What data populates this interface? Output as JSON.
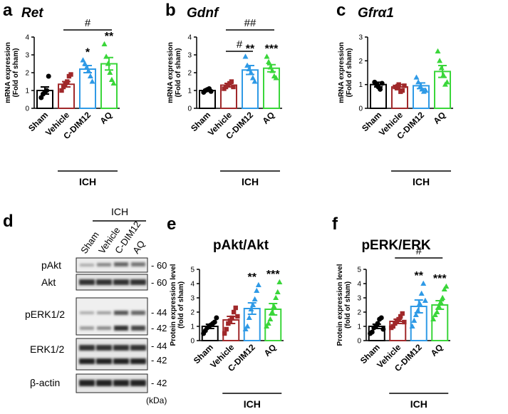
{
  "chart_data": [
    {
      "type": "bar",
      "panel": "a",
      "title": "Ret",
      "italic": true,
      "ylabel": [
        "mRNA expression",
        "(Fold of sham)"
      ],
      "categories": [
        "Sham",
        "Vehicle",
        "C-DIM12",
        "AQ"
      ],
      "colors": [
        "#000000",
        "#a0282a",
        "#2f9ae6",
        "#3ad63a"
      ],
      "markers": [
        "circle",
        "square",
        "triangle",
        "triangle"
      ],
      "values": [
        1.0,
        1.35,
        2.2,
        2.5
      ],
      "errors": [
        0.2,
        0.15,
        0.2,
        0.35
      ],
      "points": [
        [
          0.6,
          0.8,
          0.9,
          1.0,
          1.8
        ],
        [
          1.0,
          1.2,
          1.4,
          1.5,
          1.8,
          1.9
        ],
        [
          2.7,
          2.5,
          2.3,
          2.1,
          1.8,
          1.5
        ],
        [
          3.6,
          2.9,
          2.5,
          2.0,
          1.6,
          1.4
        ]
      ],
      "significance": [
        null,
        null,
        "*",
        "**"
      ],
      "brackets": [
        "#"
      ],
      "group_label": "ICH",
      "ylim": [
        0,
        4
      ],
      "yticks": [
        0,
        1,
        2,
        3,
        4
      ]
    },
    {
      "type": "bar",
      "panel": "b",
      "title": "Gdnf",
      "italic": true,
      "ylabel": [
        "mRNA expression",
        "(Fold of sham)"
      ],
      "categories": [
        "Sham",
        "Vehicle",
        "C-DIM12",
        "AQ"
      ],
      "colors": [
        "#000000",
        "#a0282a",
        "#2f9ae6",
        "#3ad63a"
      ],
      "markers": [
        "circle",
        "square",
        "triangle",
        "triangle"
      ],
      "values": [
        1.0,
        1.3,
        2.15,
        2.25
      ],
      "errors": [
        0.05,
        0.1,
        0.25,
        0.2
      ],
      "points": [
        [
          0.9,
          1.0,
          1.05,
          1.1,
          0.95
        ],
        [
          1.1,
          1.2,
          1.3,
          1.4,
          1.5,
          1.2
        ],
        [
          2.9,
          2.4,
          2.2,
          2.0,
          1.7,
          1.5
        ],
        [
          2.9,
          2.6,
          2.3,
          2.1,
          1.8,
          1.7
        ]
      ],
      "significance": [
        null,
        null,
        "**",
        "***"
      ],
      "brackets": [
        "#",
        "##"
      ],
      "group_label": "ICH",
      "ylim": [
        0,
        4
      ],
      "yticks": [
        0,
        1,
        2,
        3,
        4
      ]
    },
    {
      "type": "bar",
      "panel": "c",
      "title": "Gfrα1",
      "italic": true,
      "ylabel": [
        "mRNA expression",
        "(Fold of sham)"
      ],
      "categories": [
        "Sham",
        "Vehicle",
        "C-DIM12",
        "AQ"
      ],
      "colors": [
        "#000000",
        "#a0282a",
        "#2f9ae6",
        "#3ad63a"
      ],
      "markers": [
        "circle",
        "square",
        "triangle",
        "triangle"
      ],
      "values": [
        1.0,
        0.9,
        0.95,
        1.55
      ],
      "errors": [
        0.1,
        0.1,
        0.12,
        0.25
      ],
      "points": [
        [
          1.1,
          1.0,
          0.9,
          0.8,
          1.05
        ],
        [
          0.9,
          0.85,
          1.0,
          0.7,
          0.75,
          0.95
        ],
        [
          1.3,
          1.1,
          0.9,
          0.8,
          0.7,
          0.75
        ],
        [
          2.4,
          2.0,
          1.7,
          1.4,
          1.0,
          1.1
        ]
      ],
      "significance": [
        null,
        null,
        null,
        null
      ],
      "brackets": [],
      "group_label": "ICH",
      "ylim": [
        0,
        3
      ],
      "yticks": [
        0,
        1,
        2,
        3
      ]
    },
    {
      "type": "bar",
      "panel": "e",
      "title": "pAkt/Akt",
      "italic": false,
      "ylabel": [
        "Protein expression level",
        "(fold of sham)"
      ],
      "categories": [
        "Sham",
        "Vehicle",
        "C-DIM12",
        "AQ"
      ],
      "colors": [
        "#000000",
        "#a0282a",
        "#2f9ae6",
        "#3ad63a"
      ],
      "markers": [
        "circle",
        "square",
        "triangle",
        "triangle"
      ],
      "values": [
        1.0,
        1.45,
        2.25,
        2.2
      ],
      "errors": [
        0.15,
        0.25,
        0.4,
        0.4
      ],
      "points": [
        [
          0.5,
          0.7,
          0.9,
          1.0,
          1.1,
          1.2,
          1.3,
          1.6
        ],
        [
          0.5,
          0.8,
          1.2,
          1.4,
          1.6,
          2.0,
          2.3,
          1.7
        ],
        [
          0.8,
          1.0,
          1.6,
          2.2,
          2.5,
          2.9,
          3.5,
          3.9
        ],
        [
          1.0,
          1.2,
          1.5,
          2.0,
          2.4,
          3.0,
          3.4,
          4.1
        ]
      ],
      "significance": [
        null,
        null,
        "**",
        "***"
      ],
      "brackets": [],
      "group_label": "ICH",
      "ylim": [
        0,
        5
      ],
      "yticks": [
        0,
        1,
        2,
        3,
        4,
        5
      ]
    },
    {
      "type": "bar",
      "panel": "f",
      "title": "pERK/ERK",
      "italic": false,
      "ylabel": [
        "Protein expression level",
        "(fold of sham)"
      ],
      "categories": [
        "Sham",
        "Vehicle",
        "C-DIM12",
        "AQ"
      ],
      "colors": [
        "#000000",
        "#a0282a",
        "#2f9ae6",
        "#3ad63a"
      ],
      "markers": [
        "circle",
        "square",
        "triangle",
        "triangle"
      ],
      "values": [
        1.0,
        1.35,
        2.4,
        2.5
      ],
      "errors": [
        0.15,
        0.15,
        0.45,
        0.3
      ],
      "points": [
        [
          0.5,
          0.6,
          0.9,
          1.0,
          1.2,
          1.5,
          1.6,
          0.8
        ],
        [
          0.9,
          1.0,
          1.2,
          1.4,
          1.5,
          1.7,
          1.9,
          1.3
        ],
        [
          1.0,
          1.4,
          1.8,
          2.1,
          2.6,
          3.3,
          4.0,
          2.8
        ],
        [
          1.5,
          1.8,
          2.0,
          2.4,
          2.7,
          3.0,
          3.6,
          3.8
        ]
      ],
      "significance": [
        null,
        null,
        "**",
        "***"
      ],
      "brackets": [
        "#"
      ],
      "group_label": "ICH",
      "ylim": [
        0,
        5
      ],
      "yticks": [
        0,
        1,
        2,
        3,
        4,
        5
      ]
    }
  ],
  "blot": {
    "panel": "d",
    "group_label": "ICH",
    "lanes": [
      "Sham",
      "Vehicle",
      "C-DIM12",
      "AQ"
    ],
    "rows": [
      {
        "name": "pAkt",
        "sizes": [
          "- 60"
        ]
      },
      {
        "name": "Akt",
        "sizes": [
          "- 60"
        ]
      },
      {
        "name": "pERK1/2",
        "sizes": [
          "- 44",
          "- 42"
        ]
      },
      {
        "name": "ERK1/2",
        "sizes": [
          "- 44",
          "- 42"
        ]
      },
      {
        "name": "β-actin",
        "sizes": [
          "- 42"
        ]
      }
    ],
    "unit": "(kDa)"
  }
}
